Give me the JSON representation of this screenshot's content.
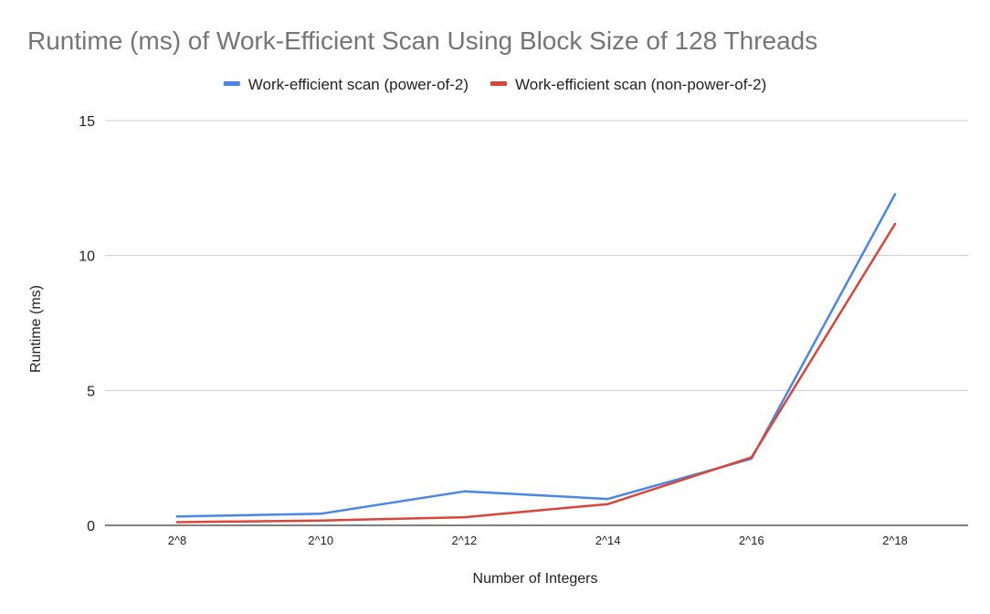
{
  "chart_data": {
    "type": "line",
    "title": "Runtime (ms) of Work-Efficient Scan Using Block Size of 128 Threads",
    "xlabel": "Number of Integers",
    "ylabel": "Runtime (ms)",
    "categories": [
      "2^8",
      "2^10",
      "2^12",
      "2^14",
      "2^16",
      "2^18"
    ],
    "ylim": [
      0,
      15
    ],
    "yticks": [
      0,
      5,
      10,
      15
    ],
    "grid": true,
    "legend_position": "top",
    "series": [
      {
        "name": "Work-efficient scan (power-of-2)",
        "color": "#4a86e8",
        "values": [
          0.33,
          0.43,
          1.26,
          0.98,
          2.47,
          12.27
        ]
      },
      {
        "name": "Work-efficient scan (non-power-of-2)",
        "color": "#dc4437",
        "values": [
          0.12,
          0.18,
          0.3,
          0.79,
          2.52,
          11.17
        ]
      }
    ]
  },
  "colors": {
    "title": "#757575",
    "text": "#222222",
    "grid": "#cccccc",
    "axis": "#333333"
  }
}
